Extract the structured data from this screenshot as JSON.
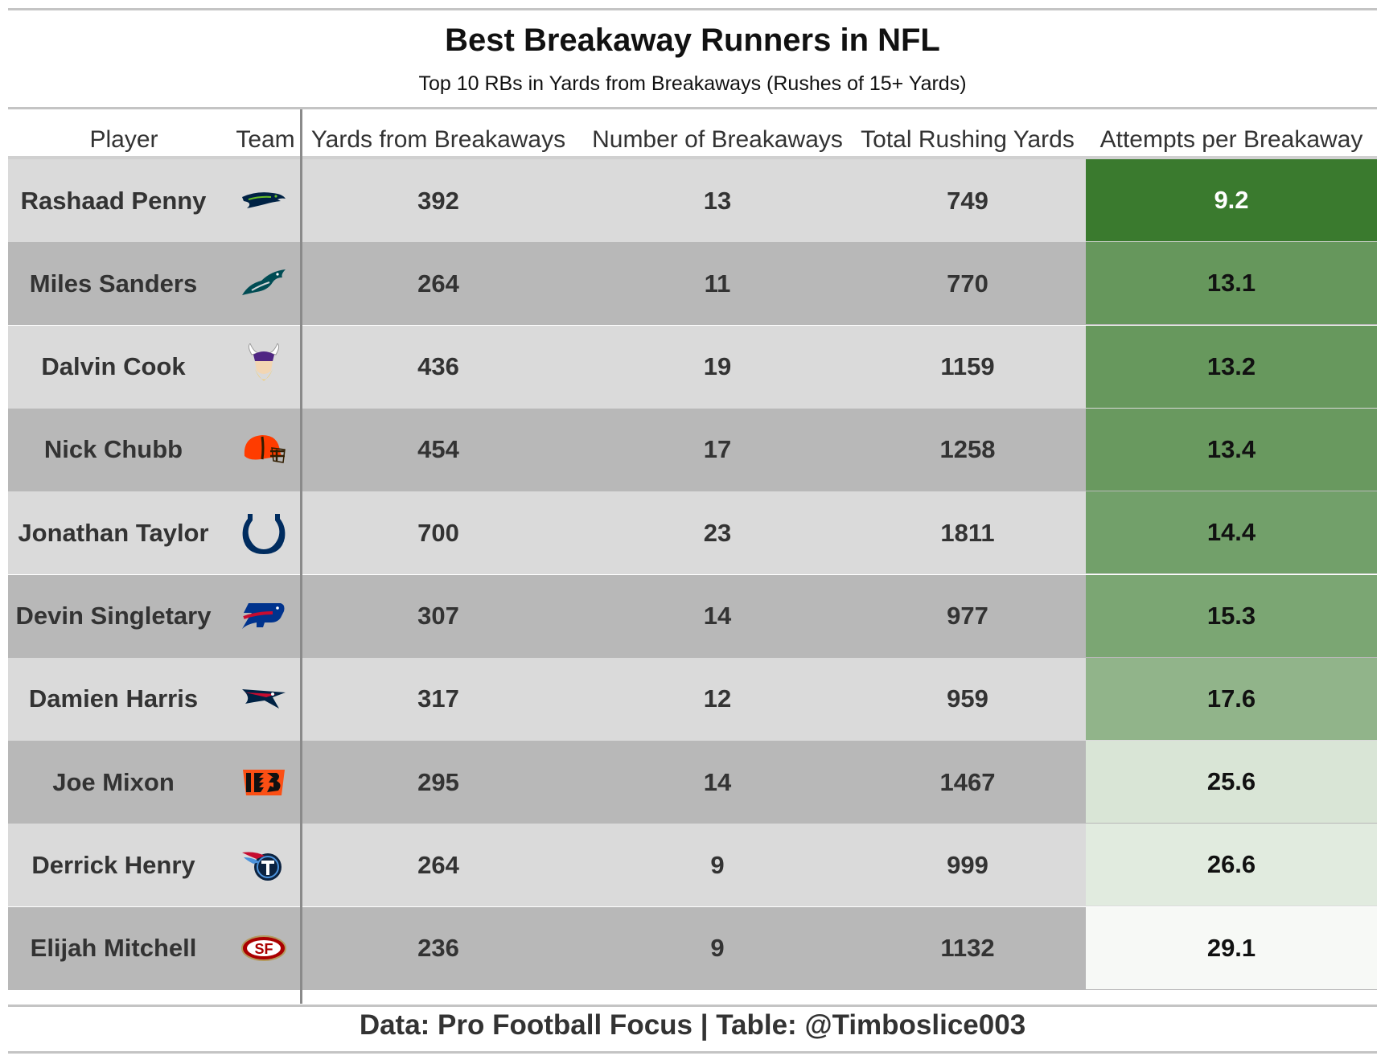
{
  "title": "Best Breakaway Runners in NFL",
  "subtitle": "Top 10 RBs in Yards from Breakaways (Rushes of 15+ Yards)",
  "footer": "Data: Pro Football Focus | Table: @Timboslice003",
  "columns": [
    "Player",
    "Team",
    "Yards from Breakaways",
    "Number of Breakaways",
    "Total Rushing Yards",
    "Attempts per Breakaway"
  ],
  "colors": {
    "row_light": "#dadada",
    "row_dark": "#b8b8b8",
    "scale_low": "#3a7a2e",
    "scale_high": "#f7f9f6",
    "seahawks": "#002244",
    "seahawks_accent": "#69be28",
    "eagles": "#004c54",
    "vikings": "#4f2683",
    "vikings_accent": "#ffc62f",
    "browns": "#ff3c00",
    "browns_accent": "#311d00",
    "colts": "#002c5f",
    "bills": "#00338d",
    "bills_accent": "#c60c30",
    "patriots": "#002244",
    "patriots_accent": "#c60c30",
    "bengals": "#fb4f14",
    "titans": "#0c2340",
    "titans_accent": "#4b92db",
    "niners": "#aa0000",
    "niners_accent": "#b3995d"
  },
  "chart_data": {
    "type": "table",
    "title": "Best Breakaway Runners in NFL",
    "subtitle": "Top 10 RBs in Yards from Breakaways (Rushes of 15+ Yards)",
    "rows": [
      {
        "player": "Rashaad Penny",
        "team_icon": "seahawks-logo-icon",
        "yards_from_breakaways": "392",
        "number_of_breakaways": "13",
        "total_rushing_yards": "749",
        "attempts_per_breakaway": "9.2"
      },
      {
        "player": "Miles Sanders",
        "team_icon": "eagles-logo-icon",
        "yards_from_breakaways": "264",
        "number_of_breakaways": "11",
        "total_rushing_yards": "770",
        "attempts_per_breakaway": "13.1"
      },
      {
        "player": "Dalvin Cook",
        "team_icon": "vikings-logo-icon",
        "yards_from_breakaways": "436",
        "number_of_breakaways": "19",
        "total_rushing_yards": "1159",
        "attempts_per_breakaway": "13.2"
      },
      {
        "player": "Nick Chubb",
        "team_icon": "browns-logo-icon",
        "yards_from_breakaways": "454",
        "number_of_breakaways": "17",
        "total_rushing_yards": "1258",
        "attempts_per_breakaway": "13.4"
      },
      {
        "player": "Jonathan Taylor",
        "team_icon": "colts-logo-icon",
        "yards_from_breakaways": "700",
        "number_of_breakaways": "23",
        "total_rushing_yards": "1811",
        "attempts_per_breakaway": "14.4"
      },
      {
        "player": "Devin Singletary",
        "team_icon": "bills-logo-icon",
        "yards_from_breakaways": "307",
        "number_of_breakaways": "14",
        "total_rushing_yards": "977",
        "attempts_per_breakaway": "15.3"
      },
      {
        "player": "Damien Harris",
        "team_icon": "patriots-logo-icon",
        "yards_from_breakaways": "317",
        "number_of_breakaways": "12",
        "total_rushing_yards": "959",
        "attempts_per_breakaway": "17.6"
      },
      {
        "player": "Joe Mixon",
        "team_icon": "bengals-logo-icon",
        "yards_from_breakaways": "295",
        "number_of_breakaways": "14",
        "total_rushing_yards": "1467",
        "attempts_per_breakaway": "25.6"
      },
      {
        "player": "Derrick Henry",
        "team_icon": "titans-logo-icon",
        "yards_from_breakaways": "264",
        "number_of_breakaways": "9",
        "total_rushing_yards": "999",
        "attempts_per_breakaway": "26.6"
      },
      {
        "player": "Elijah Mitchell",
        "team_icon": "49ers-logo-icon",
        "yards_from_breakaways": "236",
        "number_of_breakaways": "9",
        "total_rushing_yards": "1132",
        "attempts_per_breakaway": "29.1"
      }
    ]
  }
}
